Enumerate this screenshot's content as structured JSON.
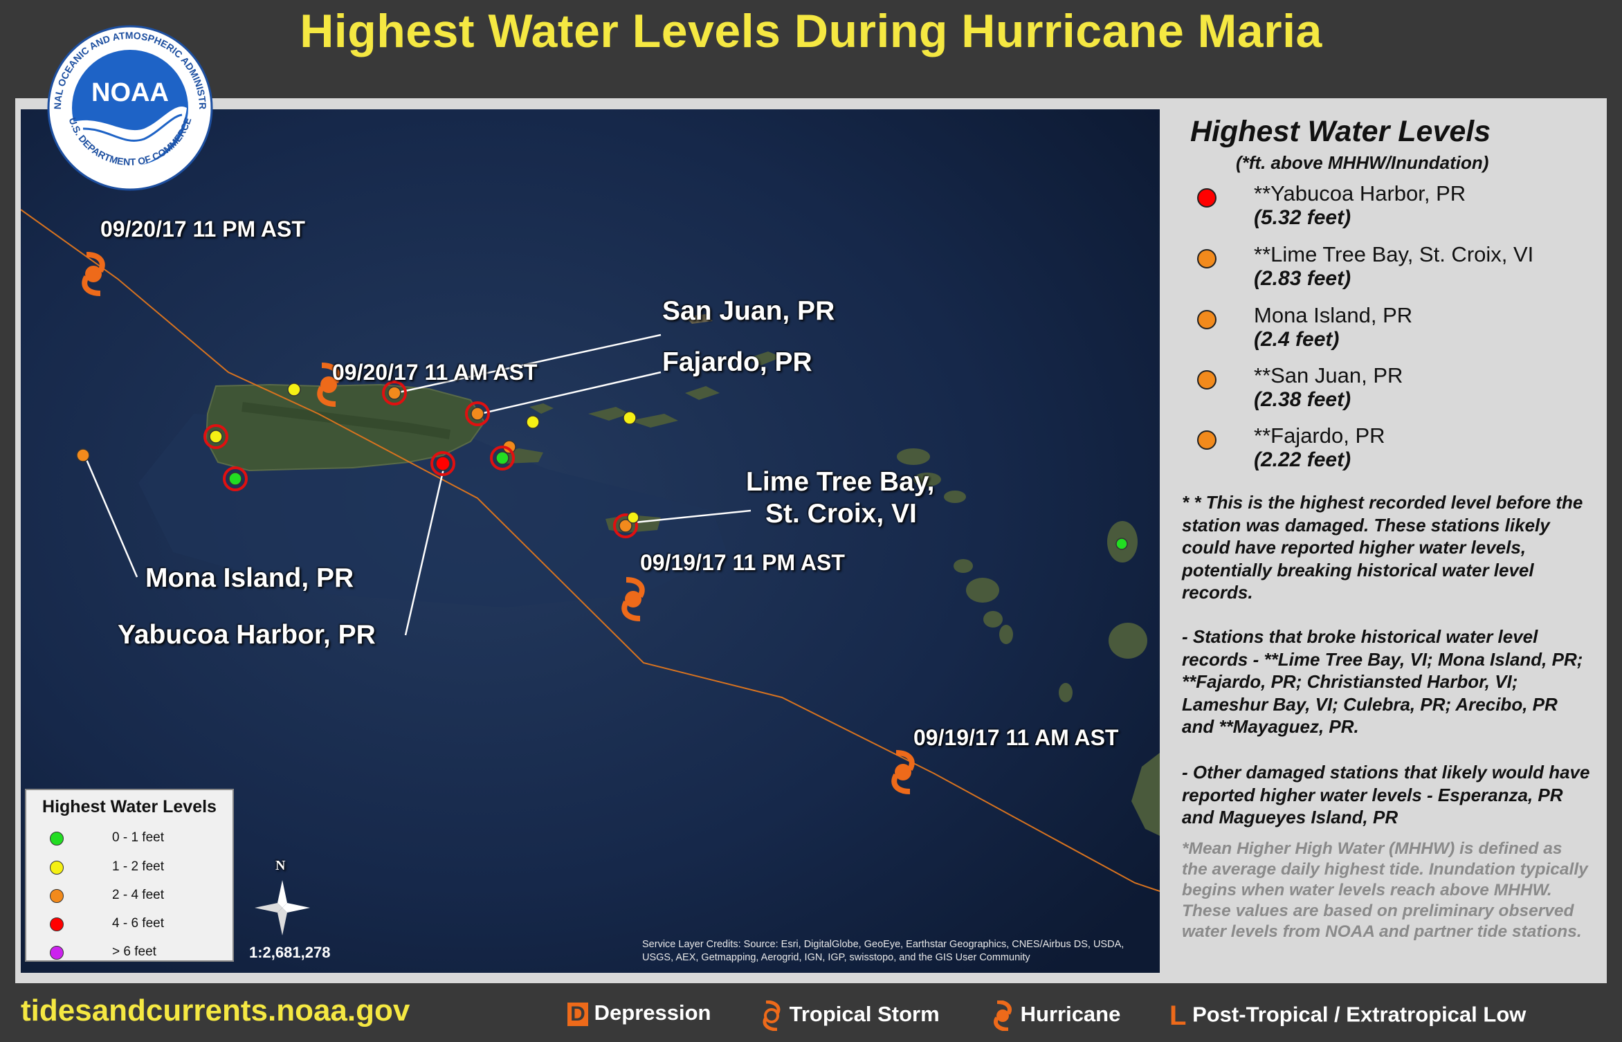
{
  "title": "Highest Water Levels During Hurricane Maria",
  "logo": {
    "text": "NOAA",
    "ring_top": "NATIONAL OCEANIC AND ATMOSPHERIC ADMINISTRATION",
    "ring_bottom": "U.S. DEPARTMENT OF COMMERCE"
  },
  "sidebar": {
    "heading": "Highest Water Levels",
    "subheading": "(*ft. above MHHW/Inundation)",
    "stations": [
      {
        "name": "**Yabucoa Harbor, PR",
        "level": "(5.32 feet)",
        "color": "#ff0000"
      },
      {
        "name": "**Lime Tree Bay, St. Croix, VI",
        "level": "(2.83 feet)",
        "color": "#f28a1c"
      },
      {
        "name": "Mona Island, PR",
        "level": "(2.4 feet)",
        "color": "#f28a1c"
      },
      {
        "name": "**San Juan, PR",
        "level": "(2.38 feet)",
        "color": "#f28a1c"
      },
      {
        "name": "**Fajardo, PR",
        "level": "(2.22 feet)",
        "color": "#f28a1c"
      }
    ],
    "note1": "* * This is the highest recorded level before the station was damaged. These stations likely could have reported higher water levels, potentially breaking historical water level records.",
    "note2": "-  Stations that broke historical water level records - **Lime Tree Bay, VI; Mona Island, PR; **Fajardo, PR; Christiansted Harbor, VI; Lameshur Bay, VI; Culebra, PR; Arecibo, PR and **Mayaguez, PR.",
    "note3": "-  Other damaged stations that likely would have reported higher water levels - Esperanza, PR and Magueyes Island, PR",
    "note4": "*Mean Higher High Water (MHHW) is defined as the average daily highest tide. Inundation typically begins when water levels reach above MHHW. These values are based on preliminary observed water levels from NOAA and partner tide stations."
  },
  "map": {
    "labels": {
      "t1": "09/20/17 11 PM AST",
      "t2": "09/20/17 11 AM AST",
      "t3": "09/19/17 11 PM AST",
      "t4": "09/19/17 11 AM AST",
      "san_juan": "San Juan, PR",
      "fajardo": "Fajardo, PR",
      "lime_tree_1": "Lime Tree Bay,",
      "lime_tree_2": "St. Croix, VI",
      "mona": "Mona Island, PR",
      "yabucoa": "Yabucoa Harbor, PR"
    },
    "north": "N",
    "scale": "1:2,681,278",
    "credits": "Service Layer Credits: Source: Esri, DigitalGlobe, GeoEye, Earthstar Geographics, CNES/Airbus DS, USDA, USGS, AEX, Getmapping, Aerogrid, IGN, IGP, swisstopo, and the GIS User Community"
  },
  "legend": {
    "title": "Highest Water Levels",
    "items": [
      {
        "label": "0 - 1 feet",
        "color": "#22dd22"
      },
      {
        "label": "1 - 2 feet",
        "color": "#f5f014"
      },
      {
        "label": "2 - 4 feet",
        "color": "#f28a1c"
      },
      {
        "label": "4 - 6 feet",
        "color": "#ff0000"
      },
      {
        "label": "> 6 feet",
        "color": "#cc22ee"
      }
    ]
  },
  "footer": {
    "url": "tidesandcurrents.noaa.gov",
    "d_letter": "D",
    "depression": "Depression",
    "tropical_storm": "Tropical Storm",
    "hurricane": "Hurricane",
    "l_letter": "L",
    "post_tropical": "Post-Tropical / Extratropical Low"
  }
}
